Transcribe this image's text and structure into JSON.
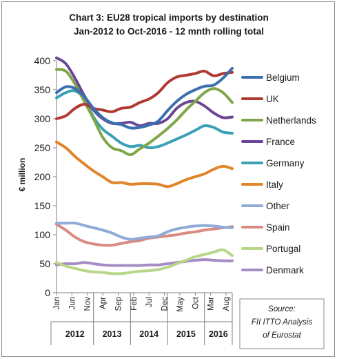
{
  "chart_data": {
    "type": "line",
    "title": "Chart 3: EU28 tropical imports by destination",
    "subtitle": "Jan-2012 to Oct-2016 - 12 mnth rolling total",
    "ylabel": "€ million",
    "xlabel": "",
    "ylim": [
      0,
      400
    ],
    "yticks": [
      0,
      50,
      100,
      150,
      200,
      250,
      300,
      350,
      400
    ],
    "grid": false,
    "legend_position": "right",
    "x_tick_labels": [
      "Jan",
      "Jun",
      "Nov",
      "Apr",
      "Sep",
      "Feb",
      "Jul",
      "Dec",
      "May",
      "Oct",
      "Mar",
      "Aug"
    ],
    "x_tick_months": [
      0,
      5,
      10,
      15,
      20,
      25,
      30,
      35,
      40,
      45,
      50,
      55
    ],
    "years": [
      {
        "label": "2012",
        "start": 0,
        "end": 12
      },
      {
        "label": "2013",
        "start": 12,
        "end": 24
      },
      {
        "label": "2014",
        "start": 24,
        "end": 36
      },
      {
        "label": "2015",
        "start": 36,
        "end": 48
      },
      {
        "label": "2016",
        "start": 48,
        "end": 58
      }
    ],
    "months_count": 58,
    "series": [
      {
        "name": "Belgium",
        "color": "#3a6fb0",
        "points": [
          [
            0,
            345
          ],
          [
            3,
            355
          ],
          [
            6,
            352
          ],
          [
            9,
            338
          ],
          [
            12,
            318
          ],
          [
            15,
            302
          ],
          [
            18,
            293
          ],
          [
            21,
            290
          ],
          [
            24,
            284
          ],
          [
            27,
            285
          ],
          [
            30,
            289
          ],
          [
            33,
            296
          ],
          [
            36,
            314
          ],
          [
            39,
            330
          ],
          [
            42,
            342
          ],
          [
            45,
            350
          ],
          [
            48,
            356
          ],
          [
            51,
            358
          ],
          [
            54,
            370
          ],
          [
            57,
            387
          ]
        ]
      },
      {
        "name": "UK",
        "color": "#b03a32",
        "points": [
          [
            0,
            300
          ],
          [
            3,
            305
          ],
          [
            6,
            318
          ],
          [
            9,
            325
          ],
          [
            12,
            318
          ],
          [
            15,
            315
          ],
          [
            18,
            312
          ],
          [
            21,
            318
          ],
          [
            24,
            320
          ],
          [
            27,
            328
          ],
          [
            30,
            334
          ],
          [
            33,
            345
          ],
          [
            36,
            362
          ],
          [
            39,
            372
          ],
          [
            42,
            375
          ],
          [
            45,
            378
          ],
          [
            48,
            382
          ],
          [
            51,
            374
          ],
          [
            54,
            378
          ],
          [
            57,
            380
          ]
        ]
      },
      {
        "name": "Netherlands",
        "color": "#80a64a",
        "points": [
          [
            0,
            385
          ],
          [
            3,
            382
          ],
          [
            6,
            360
          ],
          [
            9,
            330
          ],
          [
            12,
            300
          ],
          [
            15,
            268
          ],
          [
            18,
            250
          ],
          [
            21,
            245
          ],
          [
            24,
            238
          ],
          [
            27,
            248
          ],
          [
            30,
            258
          ],
          [
            33,
            270
          ],
          [
            36,
            283
          ],
          [
            39,
            298
          ],
          [
            42,
            315
          ],
          [
            45,
            330
          ],
          [
            48,
            345
          ],
          [
            51,
            352
          ],
          [
            54,
            345
          ],
          [
            57,
            328
          ]
        ]
      },
      {
        "name": "France",
        "color": "#6a4794",
        "points": [
          [
            0,
            405
          ],
          [
            3,
            395
          ],
          [
            6,
            370
          ],
          [
            9,
            340
          ],
          [
            12,
            315
          ],
          [
            15,
            300
          ],
          [
            18,
            292
          ],
          [
            21,
            292
          ],
          [
            24,
            294
          ],
          [
            27,
            288
          ],
          [
            30,
            292
          ],
          [
            33,
            292
          ],
          [
            36,
            300
          ],
          [
            39,
            318
          ],
          [
            42,
            328
          ],
          [
            45,
            330
          ],
          [
            48,
            322
          ],
          [
            51,
            310
          ],
          [
            54,
            302
          ],
          [
            57,
            303
          ]
        ]
      },
      {
        "name": "Germany",
        "color": "#3aa0b6",
        "points": [
          [
            0,
            336
          ],
          [
            3,
            345
          ],
          [
            6,
            348
          ],
          [
            9,
            335
          ],
          [
            12,
            303
          ],
          [
            15,
            282
          ],
          [
            18,
            270
          ],
          [
            21,
            258
          ],
          [
            24,
            252
          ],
          [
            27,
            254
          ],
          [
            30,
            250
          ],
          [
            33,
            252
          ],
          [
            36,
            258
          ],
          [
            39,
            265
          ],
          [
            42,
            272
          ],
          [
            45,
            280
          ],
          [
            48,
            288
          ],
          [
            51,
            285
          ],
          [
            54,
            277
          ],
          [
            57,
            275
          ]
        ]
      },
      {
        "name": "Italy",
        "color": "#e0852a",
        "points": [
          [
            0,
            260
          ],
          [
            3,
            250
          ],
          [
            6,
            235
          ],
          [
            9,
            222
          ],
          [
            12,
            210
          ],
          [
            15,
            200
          ],
          [
            18,
            190
          ],
          [
            21,
            190
          ],
          [
            24,
            187
          ],
          [
            27,
            188
          ],
          [
            30,
            188
          ],
          [
            33,
            187
          ],
          [
            36,
            183
          ],
          [
            39,
            188
          ],
          [
            42,
            195
          ],
          [
            45,
            200
          ],
          [
            48,
            205
          ],
          [
            51,
            213
          ],
          [
            54,
            218
          ],
          [
            57,
            214
          ]
        ]
      },
      {
        "name": "Other",
        "color": "#8fabd8",
        "points": [
          [
            0,
            120
          ],
          [
            3,
            120
          ],
          [
            6,
            120
          ],
          [
            9,
            116
          ],
          [
            12,
            112
          ],
          [
            15,
            108
          ],
          [
            18,
            103
          ],
          [
            21,
            96
          ],
          [
            24,
            92
          ],
          [
            27,
            94
          ],
          [
            30,
            96
          ],
          [
            33,
            98
          ],
          [
            36,
            105
          ],
          [
            39,
            110
          ],
          [
            42,
            113
          ],
          [
            45,
            115
          ],
          [
            48,
            116
          ],
          [
            51,
            115
          ],
          [
            54,
            113
          ],
          [
            57,
            112
          ]
        ]
      },
      {
        "name": "Spain",
        "color": "#d98a82",
        "points": [
          [
            0,
            118
          ],
          [
            3,
            108
          ],
          [
            6,
            96
          ],
          [
            9,
            88
          ],
          [
            12,
            84
          ],
          [
            15,
            82
          ],
          [
            18,
            82
          ],
          [
            21,
            85
          ],
          [
            24,
            88
          ],
          [
            27,
            90
          ],
          [
            30,
            94
          ],
          [
            33,
            96
          ],
          [
            36,
            98
          ],
          [
            39,
            100
          ],
          [
            42,
            103
          ],
          [
            45,
            105
          ],
          [
            48,
            108
          ],
          [
            51,
            110
          ],
          [
            54,
            112
          ],
          [
            57,
            114
          ]
        ]
      },
      {
        "name": "Portugal",
        "color": "#b7d68a",
        "points": [
          [
            0,
            52
          ],
          [
            3,
            46
          ],
          [
            6,
            42
          ],
          [
            9,
            38
          ],
          [
            12,
            36
          ],
          [
            15,
            35
          ],
          [
            18,
            33
          ],
          [
            21,
            33
          ],
          [
            24,
            35
          ],
          [
            27,
            37
          ],
          [
            30,
            38
          ],
          [
            33,
            40
          ],
          [
            36,
            44
          ],
          [
            39,
            50
          ],
          [
            42,
            56
          ],
          [
            45,
            62
          ],
          [
            48,
            66
          ],
          [
            51,
            70
          ],
          [
            54,
            74
          ],
          [
            57,
            64
          ]
        ]
      },
      {
        "name": "Denmark",
        "color": "#a48cc4",
        "points": [
          [
            0,
            48
          ],
          [
            3,
            50
          ],
          [
            6,
            50
          ],
          [
            9,
            52
          ],
          [
            12,
            50
          ],
          [
            15,
            48
          ],
          [
            18,
            47
          ],
          [
            21,
            47
          ],
          [
            24,
            47
          ],
          [
            27,
            47
          ],
          [
            30,
            48
          ],
          [
            33,
            48
          ],
          [
            36,
            50
          ],
          [
            39,
            52
          ],
          [
            42,
            54
          ],
          [
            45,
            56
          ],
          [
            48,
            57
          ],
          [
            51,
            56
          ],
          [
            54,
            55
          ],
          [
            57,
            55
          ]
        ]
      }
    ]
  },
  "source_box": {
    "line1": "Source:",
    "line2": "FII ITTO Analysis",
    "line3": "of Eurostat"
  }
}
